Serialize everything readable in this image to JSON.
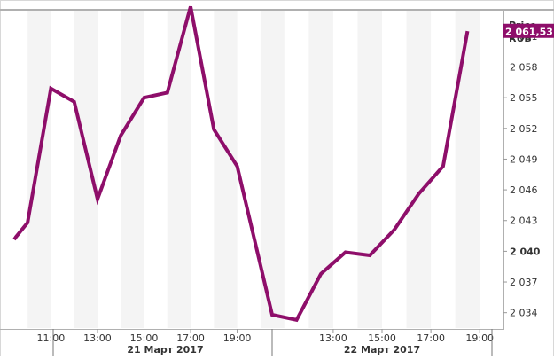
{
  "chart_data": {
    "type": "line",
    "series_color": "#8e0e6a",
    "price_label_lines": [
      "Price",
      "RUB"
    ],
    "last_price_label": "2 061,53",
    "last_price": 2061.53,
    "ylim": [
      2032.5,
      2063.5
    ],
    "y_ticks": [
      {
        "value": 2061,
        "label": "2 061",
        "bold": false
      },
      {
        "value": 2058,
        "label": "2 058",
        "bold": false
      },
      {
        "value": 2055,
        "label": "2 055",
        "bold": false
      },
      {
        "value": 2052,
        "label": "2 052",
        "bold": false
      },
      {
        "value": 2049,
        "label": "2 049",
        "bold": false
      },
      {
        "value": 2046,
        "label": "2 046",
        "bold": false
      },
      {
        "value": 2043,
        "label": "2 043",
        "bold": false
      },
      {
        "value": 2040,
        "label": "2 040",
        "bold": true
      },
      {
        "value": 2037,
        "label": "2 037",
        "bold": false
      },
      {
        "value": 2034,
        "label": "2 034",
        "bold": false
      }
    ],
    "x_ticks": [
      {
        "session": 0,
        "hour": 11,
        "label": "11:00"
      },
      {
        "session": 0,
        "hour": 13,
        "label": "13:00"
      },
      {
        "session": 0,
        "hour": 15,
        "label": "15:00"
      },
      {
        "session": 0,
        "hour": 17,
        "label": "17:00"
      },
      {
        "session": 0,
        "hour": 19,
        "label": "19:00"
      },
      {
        "session": 1,
        "hour": 13,
        "label": "13:00"
      },
      {
        "session": 1,
        "hour": 15,
        "label": "15:00"
      },
      {
        "session": 1,
        "hour": 17,
        "label": "17:00"
      },
      {
        "session": 1,
        "hour": 19,
        "label": "19:00"
      }
    ],
    "date_labels": [
      {
        "session": 0,
        "label": "21 Март 2017"
      },
      {
        "session": 1,
        "label": "22 Март 2017"
      }
    ],
    "sessions": [
      {
        "start_hour": 9.5,
        "end_hour": 20.5
      },
      {
        "start_hour": 10.5,
        "end_hour": 19.5
      }
    ],
    "points": [
      {
        "session": 0,
        "hour": 9.5,
        "y": 2041.4
      },
      {
        "session": 0,
        "hour": 10.0,
        "y": 2042.8
      },
      {
        "session": 0,
        "hour": 11.0,
        "y": 2055.9
      },
      {
        "session": 0,
        "hour": 12.0,
        "y": 2054.6
      },
      {
        "session": 0,
        "hour": 13.0,
        "y": 2045.1
      },
      {
        "session": 0,
        "hour": 14.0,
        "y": 2051.3
      },
      {
        "session": 0,
        "hour": 15.0,
        "y": 2055.0
      },
      {
        "session": 0,
        "hour": 16.0,
        "y": 2055.5
      },
      {
        "session": 0,
        "hour": 17.0,
        "y": 2063.9
      },
      {
        "session": 0,
        "hour": 18.0,
        "y": 2051.9
      },
      {
        "session": 0,
        "hour": 19.0,
        "y": 2048.3
      },
      {
        "session": 1,
        "hour": 10.5,
        "y": 2033.8
      },
      {
        "session": 1,
        "hour": 11.5,
        "y": 2033.3
      },
      {
        "session": 1,
        "hour": 12.5,
        "y": 2037.8
      },
      {
        "session": 1,
        "hour": 13.5,
        "y": 2039.9
      },
      {
        "session": 1,
        "hour": 14.5,
        "y": 2039.6
      },
      {
        "session": 1,
        "hour": 15.5,
        "y": 2042.1
      },
      {
        "session": 1,
        "hour": 16.5,
        "y": 2045.6
      },
      {
        "session": 1,
        "hour": 17.5,
        "y": 2048.3
      },
      {
        "session": 1,
        "hour": 18.5,
        "y": 2061.5
      }
    ]
  }
}
